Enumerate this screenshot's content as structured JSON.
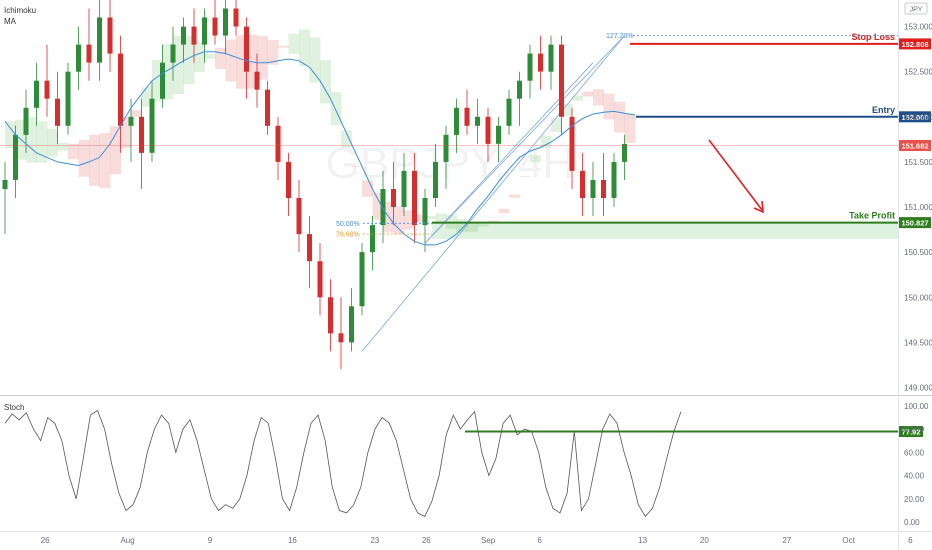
{
  "chart_data": {
    "type": "candlestick",
    "indicators": [
      "Ichimoku",
      "MA"
    ],
    "currency_badge": "JPY",
    "watermark": {
      "symbol": "GBPJPY, 4H"
    },
    "price_axis": {
      "ylim": [
        148.95,
        153.25
      ],
      "ticks": [
        "153.000",
        "152.500",
        "152.000",
        "151.500",
        "151.000",
        "150.500",
        "150.000",
        "149.500",
        "149.000"
      ],
      "tick_values": [
        153.0,
        152.5,
        152.0,
        151.5,
        151.0,
        150.5,
        150.0,
        149.5,
        149.0
      ]
    },
    "date_axis": {
      "labels": [
        "26",
        "Aug",
        "9",
        "16",
        "23",
        "26",
        "Sep",
        "6",
        "13",
        "20",
        "27",
        "Oct",
        "6"
      ],
      "label_index": [
        4,
        12,
        20,
        28,
        36,
        41,
        47,
        52,
        62,
        68,
        76,
        82,
        88
      ]
    },
    "levels": [
      {
        "name": "Stop Loss",
        "price": 152.808,
        "price_label": "152.808",
        "color": "#e01e1e"
      },
      {
        "name": "Entry",
        "price": 152.0,
        "price_label": "152.000",
        "color": "#1f4e8c"
      },
      {
        "name": "Take Profit",
        "price": 150.827,
        "price_label": "150.827",
        "color": "#2e7d1e"
      }
    ],
    "current_price": {
      "price": 151.682,
      "price_label": "151.682",
      "color": "#e8524a"
    },
    "fib_labels": [
      {
        "text": "127.20%",
        "price": 152.9,
        "color": "#4a90d9"
      },
      {
        "text": "50.00%",
        "price": 150.82,
        "color": "#4a90d9"
      },
      {
        "text": "78.60%",
        "price": 150.7,
        "color": "#e0a030"
      }
    ],
    "ma_series": [
      151.95,
      151.8,
      151.7,
      151.6,
      151.55,
      151.5,
      151.48,
      151.46,
      151.5,
      151.55,
      151.7,
      151.9,
      152.1,
      152.25,
      152.4,
      152.48,
      152.55,
      152.62,
      152.68,
      152.72,
      152.72,
      152.7,
      152.66,
      152.62,
      152.6,
      152.6,
      152.62,
      152.64,
      152.62,
      152.55,
      152.4,
      152.2,
      151.95,
      151.7,
      151.45,
      151.2,
      150.98,
      150.82,
      150.7,
      150.62,
      150.58,
      150.58,
      150.62,
      150.7,
      150.82,
      150.98,
      151.12,
      151.28,
      151.42,
      151.55,
      151.62,
      151.66,
      151.72,
      151.8,
      151.9,
      151.98,
      152.03,
      152.05,
      152.06,
      152.04,
      152.02
    ],
    "candles": [
      [
        151.2,
        151.5,
        150.7,
        151.3
      ],
      [
        151.3,
        151.9,
        151.1,
        151.8
      ],
      [
        151.8,
        152.3,
        151.6,
        152.1
      ],
      [
        152.1,
        152.6,
        151.9,
        152.4
      ],
      [
        152.4,
        152.8,
        152.0,
        152.2
      ],
      [
        152.2,
        152.5,
        151.7,
        151.9
      ],
      [
        151.9,
        152.6,
        151.8,
        152.5
      ],
      [
        152.5,
        153.0,
        152.3,
        152.8
      ],
      [
        152.8,
        153.2,
        152.4,
        152.6
      ],
      [
        152.6,
        153.3,
        152.4,
        153.1
      ],
      [
        153.1,
        153.3,
        152.5,
        152.7
      ],
      [
        152.7,
        152.9,
        151.6,
        151.9
      ],
      [
        151.9,
        152.2,
        151.5,
        152.0
      ],
      [
        152.0,
        152.2,
        151.2,
        151.6
      ],
      [
        151.6,
        152.4,
        151.5,
        152.2
      ],
      [
        152.2,
        152.8,
        152.1,
        152.6
      ],
      [
        152.6,
        153.0,
        152.4,
        152.8
      ],
      [
        152.8,
        153.1,
        152.6,
        153.0
      ],
      [
        153.0,
        153.2,
        152.6,
        152.8
      ],
      [
        152.8,
        153.2,
        152.6,
        153.1
      ],
      [
        153.1,
        153.3,
        152.8,
        152.9
      ],
      [
        152.9,
        153.3,
        152.7,
        153.2
      ],
      [
        153.2,
        153.3,
        152.9,
        153.0
      ],
      [
        153.0,
        153.1,
        152.2,
        152.5
      ],
      [
        152.5,
        152.7,
        152.1,
        152.3
      ],
      [
        152.3,
        152.4,
        151.8,
        151.9
      ],
      [
        151.9,
        152.0,
        151.3,
        151.5
      ],
      [
        151.5,
        151.6,
        150.9,
        151.1
      ],
      [
        151.1,
        151.3,
        150.5,
        150.7
      ],
      [
        150.7,
        150.9,
        150.1,
        150.4
      ],
      [
        150.4,
        150.6,
        149.8,
        150.0
      ],
      [
        150.0,
        150.2,
        149.4,
        149.6
      ],
      [
        149.6,
        150.0,
        149.2,
        149.5
      ],
      [
        149.5,
        150.1,
        149.4,
        149.9
      ],
      [
        149.9,
        150.6,
        149.8,
        150.5
      ],
      [
        150.5,
        150.9,
        150.3,
        150.8
      ],
      [
        150.8,
        151.4,
        150.6,
        151.2
      ],
      [
        151.2,
        151.5,
        150.8,
        151.0
      ],
      [
        151.0,
        151.6,
        150.9,
        151.4
      ],
      [
        151.4,
        151.6,
        150.6,
        150.8
      ],
      [
        150.8,
        151.2,
        150.5,
        151.1
      ],
      [
        151.1,
        151.7,
        151.0,
        151.5
      ],
      [
        151.5,
        151.9,
        151.2,
        151.8
      ],
      [
        151.8,
        152.2,
        151.6,
        152.1
      ],
      [
        152.1,
        152.3,
        151.8,
        151.9
      ],
      [
        151.9,
        152.2,
        151.7,
        152.0
      ],
      [
        152.0,
        152.1,
        151.5,
        151.7
      ],
      [
        151.7,
        152.0,
        151.5,
        151.9
      ],
      [
        151.9,
        152.3,
        151.8,
        152.2
      ],
      [
        152.2,
        152.5,
        151.9,
        152.4
      ],
      [
        152.4,
        152.8,
        152.2,
        152.7
      ],
      [
        152.7,
        152.9,
        152.3,
        152.5
      ],
      [
        152.5,
        152.9,
        152.3,
        152.8
      ],
      [
        152.8,
        152.9,
        151.8,
        152.0
      ],
      [
        152.0,
        152.1,
        151.2,
        151.4
      ],
      [
        151.4,
        151.6,
        150.9,
        151.1
      ],
      [
        151.1,
        151.5,
        150.9,
        151.3
      ],
      [
        151.3,
        151.6,
        150.9,
        151.1
      ],
      [
        151.1,
        151.6,
        151.0,
        151.5
      ],
      [
        151.5,
        151.8,
        151.3,
        151.7
      ]
    ],
    "stochastic": {
      "name": "Stoch",
      "ylim": [
        -5,
        105
      ],
      "ticks": [
        "100.00",
        "80.00",
        "60.00",
        "40.00",
        "20.00",
        "0.00"
      ],
      "tick_values": [
        100,
        80,
        60,
        40,
        20,
        0
      ],
      "level": {
        "value": 77.92,
        "label": "77.92",
        "color": "#2e7d1e"
      },
      "values": [
        85,
        93,
        88,
        94,
        80,
        70,
        90,
        85,
        70,
        40,
        20,
        55,
        92,
        96,
        80,
        50,
        25,
        10,
        15,
        30,
        60,
        80,
        92,
        85,
        60,
        80,
        88,
        70,
        45,
        20,
        10,
        15,
        12,
        20,
        40,
        70,
        90,
        85,
        55,
        20,
        10,
        30,
        60,
        85,
        92,
        70,
        30,
        10,
        8,
        15,
        30,
        60,
        80,
        90,
        85,
        70,
        45,
        20,
        8,
        5,
        18,
        40,
        75,
        92,
        80,
        88,
        95,
        60,
        40,
        55,
        85,
        92,
        75,
        80,
        78,
        60,
        30,
        12,
        8,
        25,
        78,
        10,
        20,
        50,
        80,
        93,
        85,
        60,
        40,
        15,
        5,
        12,
        30,
        55,
        78,
        95
      ]
    }
  }
}
